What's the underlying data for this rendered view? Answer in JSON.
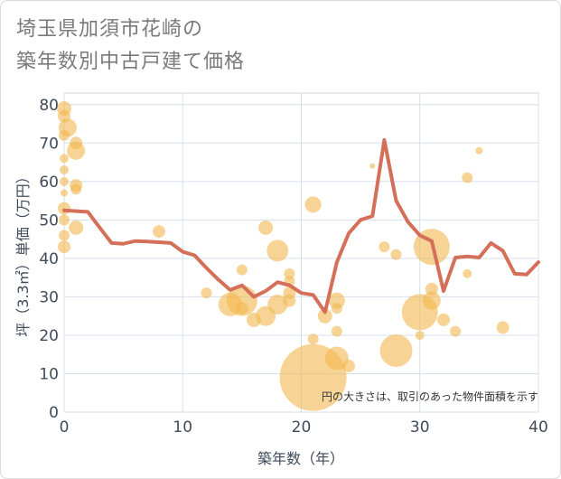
{
  "chart_data": {
    "type": "scatter",
    "title_lines": [
      "埼玉県加須市花崎の",
      "築年数別中古戸建て価格"
    ],
    "xlabel": "築年数（年）",
    "ylabel": "坪（3.3㎡）単価（万円）",
    "xlim": [
      0,
      40
    ],
    "ylim": [
      0,
      83
    ],
    "xticks": [
      0,
      10,
      20,
      30,
      40
    ],
    "yticks": [
      0,
      10,
      20,
      30,
      40,
      50,
      60,
      70,
      80
    ],
    "grid": true,
    "note": "円の大きさは、取引のあった物件面積を示す",
    "colors": {
      "bubble": "#f2b84f",
      "line": "#d4705a",
      "grid": "#d6e0ec"
    },
    "bubbles": [
      {
        "x": 0,
        "y": 79,
        "r": 8
      },
      {
        "x": 0,
        "y": 77,
        "r": 7
      },
      {
        "x": 0.3,
        "y": 74,
        "r": 10
      },
      {
        "x": 0,
        "y": 72,
        "r": 6
      },
      {
        "x": 1,
        "y": 70,
        "r": 7
      },
      {
        "x": 1,
        "y": 68,
        "r": 10
      },
      {
        "x": 0,
        "y": 66,
        "r": 5
      },
      {
        "x": 0,
        "y": 63,
        "r": 5
      },
      {
        "x": 0,
        "y": 60,
        "r": 5
      },
      {
        "x": 1,
        "y": 59,
        "r": 7
      },
      {
        "x": 1,
        "y": 58,
        "r": 6
      },
      {
        "x": 0,
        "y": 57,
        "r": 4
      },
      {
        "x": 0,
        "y": 53,
        "r": 7
      },
      {
        "x": 0,
        "y": 50,
        "r": 6
      },
      {
        "x": 1,
        "y": 48,
        "r": 8
      },
      {
        "x": 0,
        "y": 46,
        "r": 6
      },
      {
        "x": 0,
        "y": 43,
        "r": 7
      },
      {
        "x": 8,
        "y": 47,
        "r": 7
      },
      {
        "x": 12,
        "y": 31,
        "r": 6
      },
      {
        "x": 14,
        "y": 28,
        "r": 13
      },
      {
        "x": 15,
        "y": 37,
        "r": 6
      },
      {
        "x": 15,
        "y": 29,
        "r": 17
      },
      {
        "x": 15,
        "y": 27,
        "r": 7
      },
      {
        "x": 16,
        "y": 24,
        "r": 8
      },
      {
        "x": 17,
        "y": 25,
        "r": 11
      },
      {
        "x": 17,
        "y": 48,
        "r": 8
      },
      {
        "x": 18,
        "y": 42,
        "r": 12
      },
      {
        "x": 18,
        "y": 28,
        "r": 11
      },
      {
        "x": 19,
        "y": 36,
        "r": 6
      },
      {
        "x": 19,
        "y": 34,
        "r": 6
      },
      {
        "x": 19,
        "y": 31,
        "r": 7
      },
      {
        "x": 19,
        "y": 29,
        "r": 7
      },
      {
        "x": 21,
        "y": 54,
        "r": 9
      },
      {
        "x": 21,
        "y": 19,
        "r": 6
      },
      {
        "x": 21,
        "y": 9,
        "r": 37
      },
      {
        "x": 22,
        "y": 25,
        "r": 8
      },
      {
        "x": 23,
        "y": 29,
        "r": 9
      },
      {
        "x": 23,
        "y": 27,
        "r": 6
      },
      {
        "x": 23,
        "y": 21,
        "r": 6
      },
      {
        "x": 23,
        "y": 14,
        "r": 13
      },
      {
        "x": 24,
        "y": 12,
        "r": 7
      },
      {
        "x": 26,
        "y": 64,
        "r": 3
      },
      {
        "x": 27,
        "y": 43,
        "r": 6
      },
      {
        "x": 28,
        "y": 41,
        "r": 6
      },
      {
        "x": 28,
        "y": 16,
        "r": 18
      },
      {
        "x": 30,
        "y": 26,
        "r": 20
      },
      {
        "x": 30,
        "y": 20,
        "r": 5
      },
      {
        "x": 31,
        "y": 43,
        "r": 20
      },
      {
        "x": 31,
        "y": 32,
        "r": 7
      },
      {
        "x": 31,
        "y": 29,
        "r": 10
      },
      {
        "x": 32,
        "y": 24,
        "r": 7
      },
      {
        "x": 33,
        "y": 21,
        "r": 6
      },
      {
        "x": 34,
        "y": 61,
        "r": 6
      },
      {
        "x": 34,
        "y": 36,
        "r": 5
      },
      {
        "x": 35,
        "y": 68,
        "r": 4
      },
      {
        "x": 37,
        "y": 22,
        "r": 7
      }
    ],
    "line": {
      "x": [
        0,
        1,
        2,
        3,
        4,
        5,
        6,
        7,
        8,
        9,
        10,
        11,
        12,
        13,
        14,
        15,
        16,
        17,
        18,
        19,
        20,
        21,
        22,
        23,
        24,
        25,
        26,
        27,
        28,
        29,
        30,
        31,
        32,
        33,
        34,
        35,
        36,
        37,
        38,
        39,
        40
      ],
      "y": [
        52.5,
        52.3,
        52.1,
        48,
        44,
        43.8,
        44.5,
        44.4,
        44.2,
        44,
        41.7,
        40.8,
        37.5,
        34.5,
        31.8,
        33,
        30,
        31.5,
        33.8,
        33,
        31,
        30.5,
        26,
        39,
        46.5,
        50,
        51,
        70.8,
        55,
        49.5,
        46,
        44.5,
        31.5,
        40.2,
        40.5,
        40.2,
        44,
        42,
        36,
        35.8,
        39
      ]
    }
  }
}
